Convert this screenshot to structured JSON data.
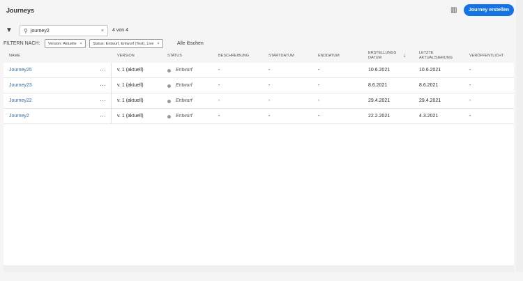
{
  "header": {
    "title": "Journeys",
    "create_button": "Journey erstellen",
    "columns_icon": "column-settings-icon"
  },
  "search": {
    "value": "journey2",
    "count": "4 von 4"
  },
  "filters": {
    "label": "FILTERN NACH:",
    "chips": [
      "Version: Aktuelle",
      "Status: Entwurf, Entwurf (Test), Live"
    ],
    "clear_all": "Alle löschen"
  },
  "table": {
    "headers": [
      "NAME",
      "VERSION",
      "STATUS",
      "BESCHREIBUNG",
      "STARTDATUM",
      "ENDDATUM",
      "ERSTELLUNGS DATUM",
      "LETZTE AKTUALISIERUNG",
      "VERÖFFENTLICHT"
    ],
    "sort": "descending",
    "rows": [
      {
        "name": "Journey25",
        "version": "v. 1 (aktuell)",
        "status": "Entwurf",
        "beschreibung": "-",
        "start": "-",
        "end": "-",
        "created": "10.6.2021",
        "updated": "10.6.2021",
        "published": "-"
      },
      {
        "name": "Journey23",
        "version": "v. 1 (aktuell)",
        "status": "Entwurf",
        "beschreibung": "-",
        "start": "-",
        "end": "-",
        "created": "8.6.2021",
        "updated": "8.6.2021",
        "published": "-"
      },
      {
        "name": "Journey22",
        "version": "v. 1 (aktuell)",
        "status": "Entwurf",
        "beschreibung": "-",
        "start": "-",
        "end": "-",
        "created": "29.4.2021",
        "updated": "29.4.2021",
        "published": "-"
      },
      {
        "name": "Journey2",
        "version": "v. 1 (aktuell)",
        "status": "Entwurf",
        "beschreibung": "-",
        "start": "-",
        "end": "-",
        "created": "22.2.2021",
        "updated": "4.3.2021",
        "published": "-"
      }
    ]
  },
  "colors": {
    "accent": "#1473e6",
    "link": "#2d6dbf",
    "status_dot": "#999999"
  }
}
